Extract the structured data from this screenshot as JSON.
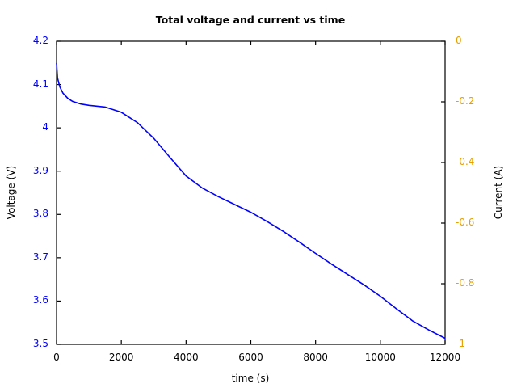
{
  "chart_data": {
    "type": "line",
    "title": "Total voltage and current vs time",
    "xlabel": "time (s)",
    "ylabel": "Voltage (V)",
    "y2label": "Current (A)",
    "xlim": [
      0,
      12000
    ],
    "ylim": [
      3.5,
      4.2
    ],
    "y2lim": [
      -1,
      0
    ],
    "grid": false,
    "legend": null,
    "x_ticks": [
      "0",
      "2000",
      "4000",
      "6000",
      "8000",
      "10000",
      "12000"
    ],
    "y_ticks": [
      "3.5",
      "3.6",
      "3.7",
      "3.8",
      "3.9",
      "4",
      "4.1",
      "4.2"
    ],
    "y2_ticks": [
      "-1",
      "-0.8",
      "-0.6",
      "-0.4",
      "-0.2",
      "0"
    ],
    "colors": {
      "voltage": "#0000ff",
      "current_axis": "#e69f00"
    },
    "series": [
      {
        "name": "Voltage",
        "axis": "left",
        "color": "#0000ff",
        "x": [
          0,
          30,
          100,
          200,
          350,
          500,
          750,
          1000,
          1500,
          2000,
          2500,
          3000,
          3500,
          4000,
          4500,
          5000,
          5500,
          6000,
          6500,
          7000,
          7500,
          8000,
          8500,
          9000,
          9500,
          10000,
          10500,
          11000,
          11500,
          12000
        ],
        "values": [
          4.15,
          4.115,
          4.095,
          4.08,
          4.068,
          4.061,
          4.055,
          4.052,
          4.048,
          4.036,
          4.012,
          3.976,
          3.932,
          3.889,
          3.861,
          3.841,
          3.823,
          3.805,
          3.784,
          3.761,
          3.736,
          3.71,
          3.685,
          3.661,
          3.637,
          3.611,
          3.582,
          3.554,
          3.533,
          3.514
        ]
      }
    ]
  }
}
